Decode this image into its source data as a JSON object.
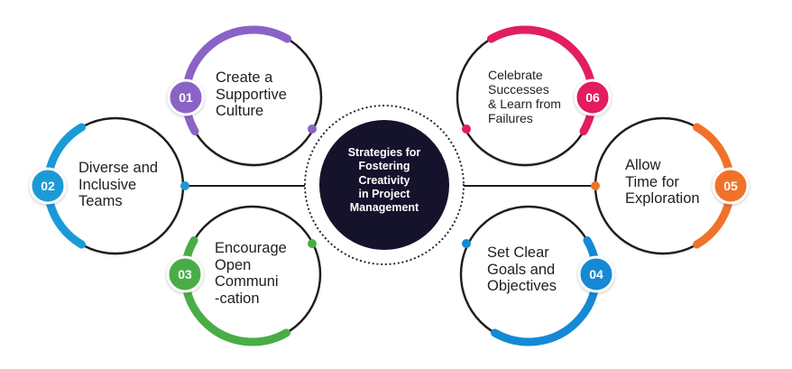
{
  "center": {
    "title": "Strategies for\nFostering\nCreativity\nin Project\nManagement",
    "fill_color": "#15122b"
  },
  "strategies": [
    {
      "number": "01",
      "label": "Create a\nSupportive\nCulture",
      "color": "#8a63c6"
    },
    {
      "number": "02",
      "label": "Diverse and\nInclusive\nTeams",
      "color": "#1a9ad6"
    },
    {
      "number": "03",
      "label": "Encourage\nOpen\nCommuni\n-cation",
      "color": "#49ad47"
    },
    {
      "number": "04",
      "label": "Set Clear\nGoals and\nObjectives",
      "color": "#1689d4"
    },
    {
      "number": "05",
      "label": "Allow\nTime for\nExploration",
      "color": "#f0722a"
    },
    {
      "number": "06",
      "label": "Celebrate\nSuccesses\n& Learn from\nFailures",
      "color": "#e21e5d"
    }
  ]
}
